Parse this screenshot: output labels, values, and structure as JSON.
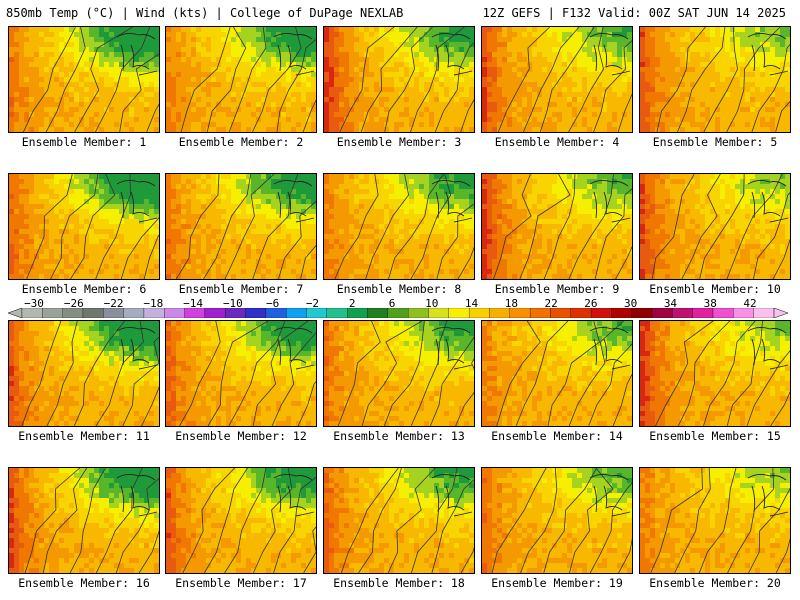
{
  "header": {
    "left": "850mb Temp (°C) | Wind (kts) | College of DuPage NEXLAB",
    "right": "12Z GEFS | F132 Valid: 00Z SAT JUN 14 2025"
  },
  "panels": [
    {
      "label": "Ensemble Member: 1"
    },
    {
      "label": "Ensemble Member: 2"
    },
    {
      "label": "Ensemble Member: 3"
    },
    {
      "label": "Ensemble Member: 4"
    },
    {
      "label": "Ensemble Member: 5"
    },
    {
      "label": "Ensemble Member: 6"
    },
    {
      "label": "Ensemble Member: 7"
    },
    {
      "label": "Ensemble Member: 8"
    },
    {
      "label": "Ensemble Member: 9"
    },
    {
      "label": "Ensemble Member: 10"
    },
    {
      "label": "Ensemble Member: 11"
    },
    {
      "label": "Ensemble Member: 12"
    },
    {
      "label": "Ensemble Member: 13"
    },
    {
      "label": "Ensemble Member: 14"
    },
    {
      "label": "Ensemble Member: 15"
    },
    {
      "label": "Ensemble Member: 16"
    },
    {
      "label": "Ensemble Member: 17"
    },
    {
      "label": "Ensemble Member: 18"
    },
    {
      "label": "Ensemble Member: 19"
    },
    {
      "label": "Ensemble Member: 20"
    }
  ],
  "colorbar": {
    "labels": [
      "−30",
      "−26",
      "−22",
      "−18",
      "−14",
      "−10",
      "−6",
      "−2",
      "2",
      "6",
      "10",
      "14",
      "18",
      "22",
      "26",
      "30",
      "34",
      "38",
      "42"
    ],
    "colors": [
      "#b0b8b0",
      "#9aa39a",
      "#858e85",
      "#6f776f",
      "#8a8f9c",
      "#a6acc0",
      "#c4b0dc",
      "#cc88e8",
      "#d040e0",
      "#a020d0",
      "#6a2ac0",
      "#3030c8",
      "#2060e0",
      "#10a0f0",
      "#20c8d0",
      "#20c090",
      "#10a050",
      "#208020",
      "#50a020",
      "#90c020",
      "#d8e020",
      "#f8f000",
      "#f8d000",
      "#f8b000",
      "#f89000",
      "#f07000",
      "#e85000",
      "#e03000",
      "#d01010",
      "#b00000",
      "#900000",
      "#a00040",
      "#c01070",
      "#e020a0",
      "#f050d0",
      "#f890e8",
      "#fcc0f0"
    ]
  }
}
